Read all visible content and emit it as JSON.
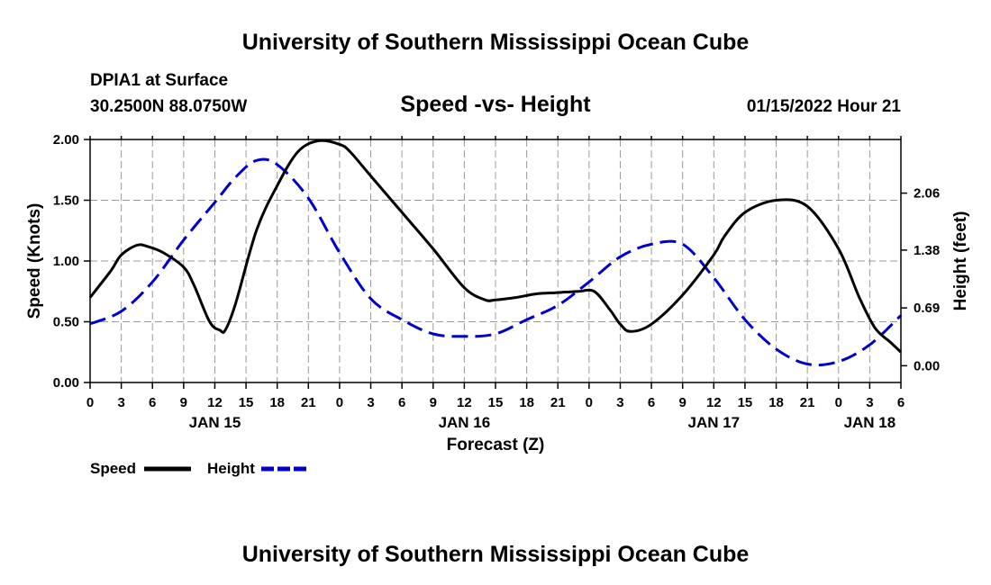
{
  "header": {
    "title": "University of Southern Mississippi Ocean Cube",
    "footer_title": "University of Southern Mississippi Ocean Cube",
    "station": "DPIA1 at Surface",
    "coords": "30.2500N  88.0750W",
    "datetime": "01/15/2022 Hour 21"
  },
  "chart_data": {
    "type": "line",
    "title": "Speed -vs- Height",
    "xlabel": "Forecast (Z)",
    "ylabel": "Speed (Knots)",
    "y2label": "Height (feet)",
    "x_unit": "hours from 0Z Jan 15",
    "xlim": [
      0,
      78
    ],
    "ylim": [
      0,
      2
    ],
    "y2lim": [
      -0.2,
      2.7
    ],
    "x_ticks": [
      0,
      3,
      6,
      9,
      12,
      15,
      18,
      21,
      24,
      27,
      30,
      33,
      36,
      39,
      42,
      45,
      48,
      51,
      54,
      57,
      60,
      63,
      66,
      69,
      72,
      75,
      78
    ],
    "x_tick_labels": [
      "0",
      "3",
      "6",
      "9",
      "12",
      "15",
      "18",
      "21",
      "0",
      "3",
      "6",
      "9",
      "12",
      "15",
      "18",
      "21",
      "0",
      "3",
      "6",
      "9",
      "12",
      "15",
      "18",
      "21",
      "0",
      "3",
      "6"
    ],
    "day_labels": [
      {
        "x": 12,
        "label": "JAN 15"
      },
      {
        "x": 36,
        "label": "JAN 16"
      },
      {
        "x": 60,
        "label": "JAN 17"
      },
      {
        "x": 75,
        "label": "JAN 18"
      }
    ],
    "y_ticks": [
      0,
      0.5,
      1.0,
      1.5,
      2.0
    ],
    "y_tick_labels": [
      "0.00",
      "0.50",
      "1.00",
      "1.50",
      "2.00"
    ],
    "y2_ticks": [
      0,
      0.69,
      1.38,
      2.06
    ],
    "y2_tick_labels": [
      "0.00",
      "0.69",
      "1.38",
      "2.06"
    ],
    "grid": true,
    "legend_position": "bottom-left",
    "series": [
      {
        "name": "Speed",
        "axis": "left",
        "color": "#000000",
        "dash": "solid",
        "x": [
          0,
          2,
          3,
          4.5,
          5.5,
          7,
          9,
          10,
          11.5,
          12.5,
          13,
          14,
          16,
          18,
          20,
          22,
          24,
          25,
          27,
          30,
          33,
          36,
          38,
          39,
          41,
          43,
          45,
          47,
          48.5,
          50,
          51,
          52,
          54,
          57,
          60,
          61,
          63,
          66,
          69,
          72,
          74,
          75.5,
          77,
          78
        ],
        "values": [
          0.7,
          0.92,
          1.05,
          1.13,
          1.12,
          1.07,
          0.95,
          0.8,
          0.5,
          0.43,
          0.43,
          0.65,
          1.25,
          1.62,
          1.9,
          1.99,
          1.96,
          1.9,
          1.7,
          1.4,
          1.1,
          0.78,
          0.68,
          0.68,
          0.7,
          0.73,
          0.74,
          0.75,
          0.75,
          0.6,
          0.48,
          0.42,
          0.48,
          0.72,
          1.05,
          1.2,
          1.4,
          1.5,
          1.45,
          1.1,
          0.7,
          0.45,
          0.33,
          0.25
        ]
      },
      {
        "name": "Height",
        "axis": "right",
        "color": "#0000cc",
        "dash": "dashed",
        "x": [
          0,
          3,
          6,
          9,
          12,
          14,
          16,
          18,
          21,
          24,
          27,
          30,
          33,
          36,
          39,
          42,
          45,
          48,
          51,
          54,
          57,
          60,
          63,
          66,
          69,
          72,
          75,
          78
        ],
        "values": [
          0.5,
          0.65,
          1.0,
          1.5,
          1.95,
          2.25,
          2.45,
          2.4,
          2.0,
          1.35,
          0.8,
          0.55,
          0.38,
          0.35,
          0.38,
          0.55,
          0.72,
          1.0,
          1.3,
          1.45,
          1.45,
          1.05,
          0.55,
          0.2,
          0.02,
          0.05,
          0.25,
          0.6
        ]
      }
    ]
  }
}
